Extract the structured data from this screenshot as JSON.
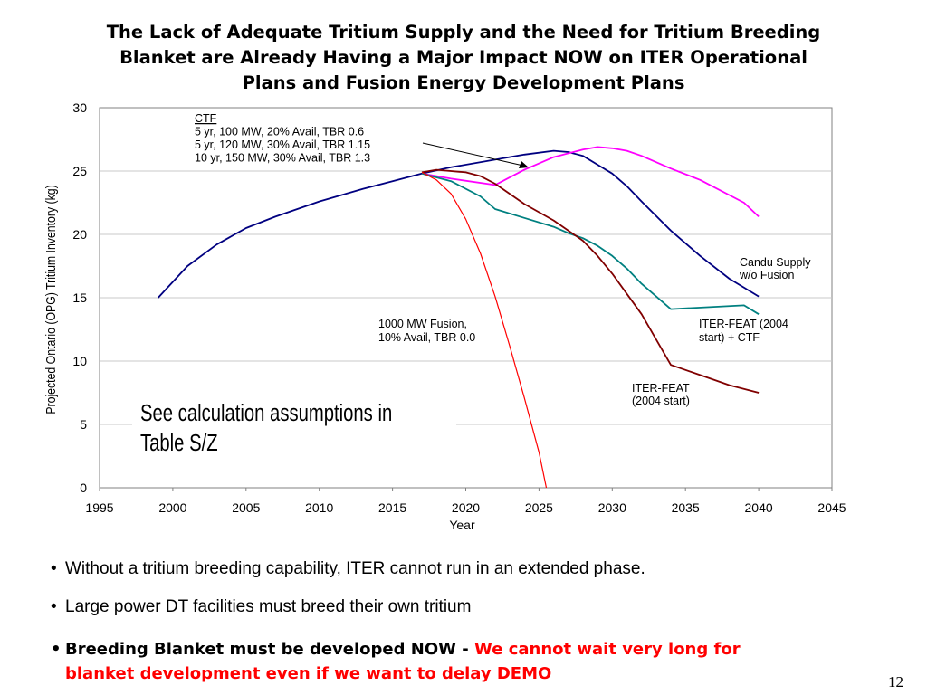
{
  "slide": {
    "title_lines": [
      "The Lack of Adequate Tritium Supply and the Need for Tritium Breeding",
      "Blanket are Already Having a Major Impact NOW on ITER Operational",
      "Plans and Fusion Energy Development Plans"
    ],
    "bullets": [
      "Without a tritium breeding capability, ITER cannot run in an extended phase.",
      "Large power DT facilities must breed their own tritium"
    ],
    "bullet3": {
      "bold": "Breeding Blanket must be developed NOW - ",
      "red_line1": "We cannot wait very long for",
      "red_line2": "blanket development even if we want to delay DEMO"
    },
    "page_number": "12"
  },
  "chart_data": {
    "type": "line",
    "xlabel": "Year",
    "ylabel": "Projected Ontario (OPG) Tritium Inventory (kg)",
    "xlim": [
      1995,
      2045
    ],
    "ylim": [
      0,
      30
    ],
    "xticks": [
      "1995",
      "2000",
      "2005",
      "2010",
      "2015",
      "2020",
      "2025",
      "2030",
      "2035",
      "2040",
      "2045"
    ],
    "yticks": [
      "0",
      "5",
      "10",
      "15",
      "20",
      "25",
      "30"
    ],
    "grid": "horizontal",
    "series": [
      {
        "name": "Candu Supply w/o Fusion",
        "color": "#000080",
        "points": [
          [
            1999,
            15
          ],
          [
            2001,
            17.5
          ],
          [
            2003,
            19.2
          ],
          [
            2005,
            20.5
          ],
          [
            2007,
            21.4
          ],
          [
            2010,
            22.6
          ],
          [
            2013,
            23.6
          ],
          [
            2015,
            24.2
          ],
          [
            2017,
            24.8
          ],
          [
            2019,
            25.3
          ],
          [
            2022,
            25.9
          ],
          [
            2024,
            26.3
          ],
          [
            2026,
            26.6
          ],
          [
            2027,
            26.5
          ],
          [
            2028,
            26.2
          ],
          [
            2029,
            25.5
          ],
          [
            2030,
            24.8
          ],
          [
            2031,
            23.8
          ],
          [
            2032,
            22.6
          ],
          [
            2034,
            20.3
          ],
          [
            2036,
            18.3
          ],
          [
            2038,
            16.5
          ],
          [
            2040,
            15.1
          ]
        ]
      },
      {
        "name": "CTF",
        "color": "#ff00ff",
        "points": [
          [
            2017,
            24.8
          ],
          [
            2019,
            24.4
          ],
          [
            2022,
            23.9
          ],
          [
            2024,
            25.1
          ],
          [
            2026,
            26.1
          ],
          [
            2028,
            26.7
          ],
          [
            2029,
            26.9
          ],
          [
            2030,
            26.8
          ],
          [
            2031,
            26.6
          ],
          [
            2032,
            26.2
          ],
          [
            2034,
            25.2
          ],
          [
            2036,
            24.3
          ],
          [
            2039,
            22.5
          ],
          [
            2040,
            21.4
          ]
        ]
      },
      {
        "name": "ITER-FEAT (2004 start) + CTF",
        "color": "#008080",
        "points": [
          [
            2017,
            24.8
          ],
          [
            2019,
            24.2
          ],
          [
            2021,
            23
          ],
          [
            2022,
            22
          ],
          [
            2024,
            21.3
          ],
          [
            2026,
            20.6
          ],
          [
            2027,
            20.1
          ],
          [
            2028,
            19.7
          ],
          [
            2029,
            19.1
          ],
          [
            2030,
            18.3
          ],
          [
            2031,
            17.3
          ],
          [
            2032,
            16.1
          ],
          [
            2034,
            14.1
          ],
          [
            2039,
            14.4
          ],
          [
            2040,
            13.7
          ]
        ]
      },
      {
        "name": "ITER-FEAT (2004 start)",
        "color": "#800000",
        "points": [
          [
            2017,
            24.9
          ],
          [
            2018,
            25.1
          ],
          [
            2020,
            24.9
          ],
          [
            2021,
            24.6
          ],
          [
            2022,
            24
          ],
          [
            2024,
            22.4
          ],
          [
            2026,
            21.1
          ],
          [
            2028,
            19.5
          ],
          [
            2029,
            18.3
          ],
          [
            2030,
            16.9
          ],
          [
            2031,
            15.3
          ],
          [
            2032,
            13.7
          ],
          [
            2034,
            9.7
          ],
          [
            2036,
            8.9
          ],
          [
            2038,
            8.1
          ],
          [
            2040,
            7.5
          ]
        ]
      },
      {
        "name": "1000 MW Fusion, 10% Avail, TBR 0.0",
        "color": "#ff0000",
        "points": [
          [
            2017,
            24.9
          ],
          [
            2018,
            24.3
          ],
          [
            2019,
            23.2
          ],
          [
            2020,
            21.2
          ],
          [
            2021,
            18.5
          ],
          [
            2022,
            15.1
          ],
          [
            2023,
            11.2
          ],
          [
            2024,
            7.1
          ],
          [
            2025,
            2.8
          ],
          [
            2025.5,
            0
          ]
        ]
      }
    ],
    "annotations": [
      {
        "id": "ctf",
        "lines": [
          "CTF",
          "5 yr, 100 MW, 20% Avail, TBR 0.6",
          "5 yr, 120 MW, 30% Avail, TBR 1.15",
          "10 yr, 150 MW, 30% Avail, TBR 1.3"
        ]
      },
      {
        "id": "candu",
        "lines": [
          "Candu Supply",
          "w/o Fusion"
        ]
      },
      {
        "id": "fusion1000",
        "lines": [
          "1000 MW Fusion,",
          "10% Avail, TBR 0.0"
        ]
      },
      {
        "id": "feat_ctf",
        "lines": [
          "ITER-FEAT (2004",
          "start) + CTF"
        ]
      },
      {
        "id": "feat",
        "lines": [
          "ITER-FEAT",
          "(2004 start)"
        ]
      }
    ],
    "note_lines": [
      "See calculation assumptions in",
      "Table S/Z"
    ]
  }
}
